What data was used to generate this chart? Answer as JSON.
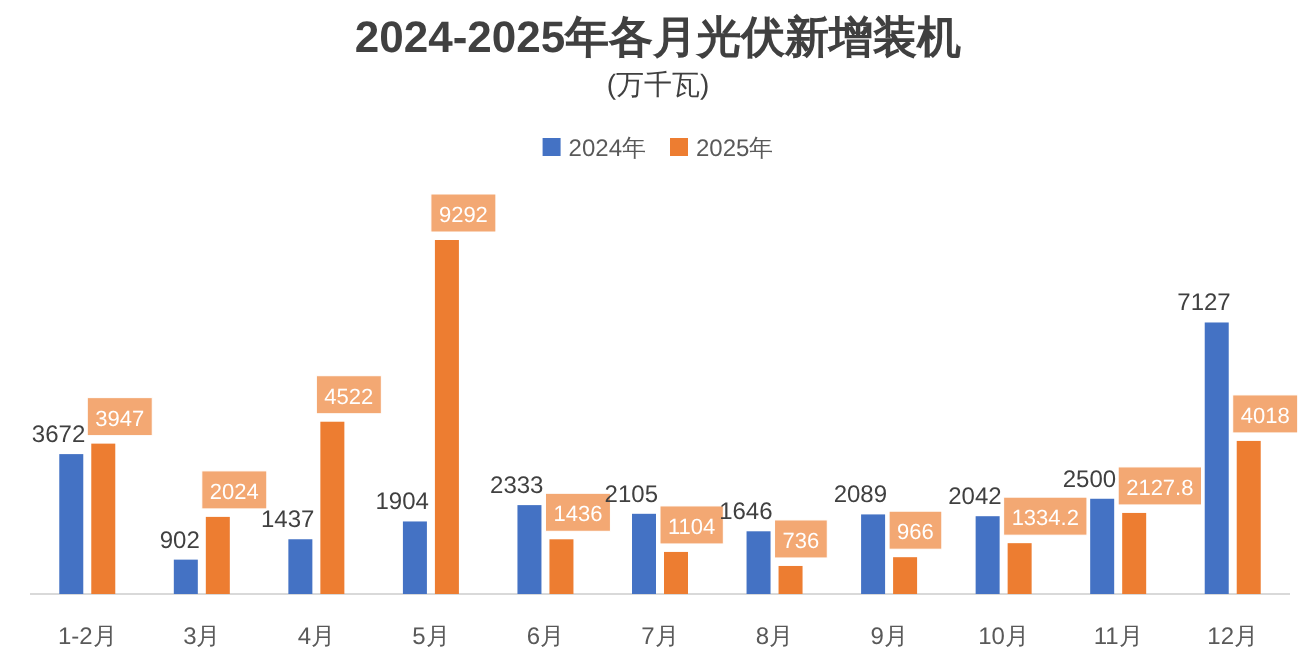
{
  "chart_data": {
    "type": "bar",
    "title": "2024-2025年各月光伏新增装机",
    "subtitle": "(万千瓦)",
    "categories": [
      "1-2月",
      "3月",
      "4月",
      "5月",
      "6月",
      "7月",
      "8月",
      "9月",
      "10月",
      "11月",
      "12月"
    ],
    "series": [
      {
        "name": "2024年",
        "color": "#4472c4",
        "values": [
          3672,
          902,
          1437,
          1904,
          2333,
          2105,
          1646,
          2089,
          2042,
          2500,
          7127
        ]
      },
      {
        "name": "2025年",
        "color": "#ed7d31",
        "values": [
          3947,
          2024,
          4522,
          9292,
          1436,
          1104,
          736,
          966,
          1334.2,
          2127.8,
          4018
        ]
      }
    ],
    "data_labels": true,
    "legend": "top"
  }
}
